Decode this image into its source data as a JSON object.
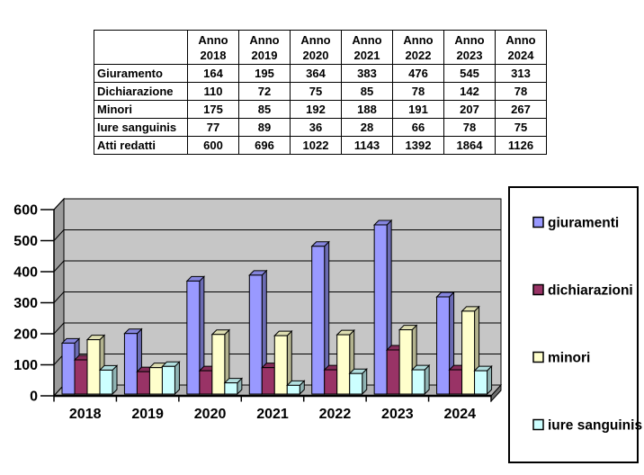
{
  "table": {
    "header_prefix": "Anno",
    "years": [
      "2018",
      "2019",
      "2020",
      "2021",
      "2022",
      "2023",
      "2024"
    ],
    "rows": [
      {
        "label": "Giuramento",
        "values": [
          164,
          195,
          364,
          383,
          476,
          545,
          313
        ]
      },
      {
        "label": "Dichiarazione",
        "values": [
          110,
          72,
          75,
          85,
          78,
          142,
          78
        ]
      },
      {
        "label": "Minori",
        "values": [
          175,
          85,
          192,
          188,
          191,
          207,
          267
        ]
      },
      {
        "label": "Iure sanguinis",
        "values": [
          77,
          89,
          36,
          28,
          66,
          78,
          75
        ]
      },
      {
        "label": "Atti redatti",
        "values": [
          600,
          696,
          1022,
          1143,
          1392,
          1864,
          1126
        ]
      }
    ]
  },
  "chart_data": {
    "type": "bar",
    "style": "3d-clustered",
    "title": "",
    "categories": [
      "2018",
      "2019",
      "2020",
      "2021",
      "2022",
      "2023",
      "2024"
    ],
    "series": [
      {
        "name": "giuramenti",
        "color": "#9999FF",
        "values": [
          164,
          195,
          364,
          383,
          476,
          545,
          313
        ]
      },
      {
        "name": "dichiarazioni",
        "color": "#993366",
        "values": [
          110,
          72,
          75,
          85,
          78,
          142,
          78
        ]
      },
      {
        "name": "minori",
        "color": "#FFFFCC",
        "values": [
          175,
          85,
          192,
          188,
          191,
          207,
          267
        ]
      },
      {
        "name": "iure sanguinis",
        "color": "#CCFFFF",
        "values": [
          77,
          89,
          36,
          28,
          66,
          78,
          75
        ]
      }
    ],
    "xlabel": "",
    "ylabel": "",
    "ylim": [
      0,
      600
    ],
    "yticks": [
      0,
      100,
      200,
      300,
      400,
      500,
      600
    ],
    "grid": true,
    "legend_position": "right",
    "colors": {
      "back_wall": "#C6C6C6",
      "side_wall": "#9B9B9B",
      "floor": "#B3B3B3",
      "floor_edge": "#6F6F6F",
      "outline": "#000000",
      "legend_bg": "#FFFFFF",
      "text": "#000000"
    }
  }
}
